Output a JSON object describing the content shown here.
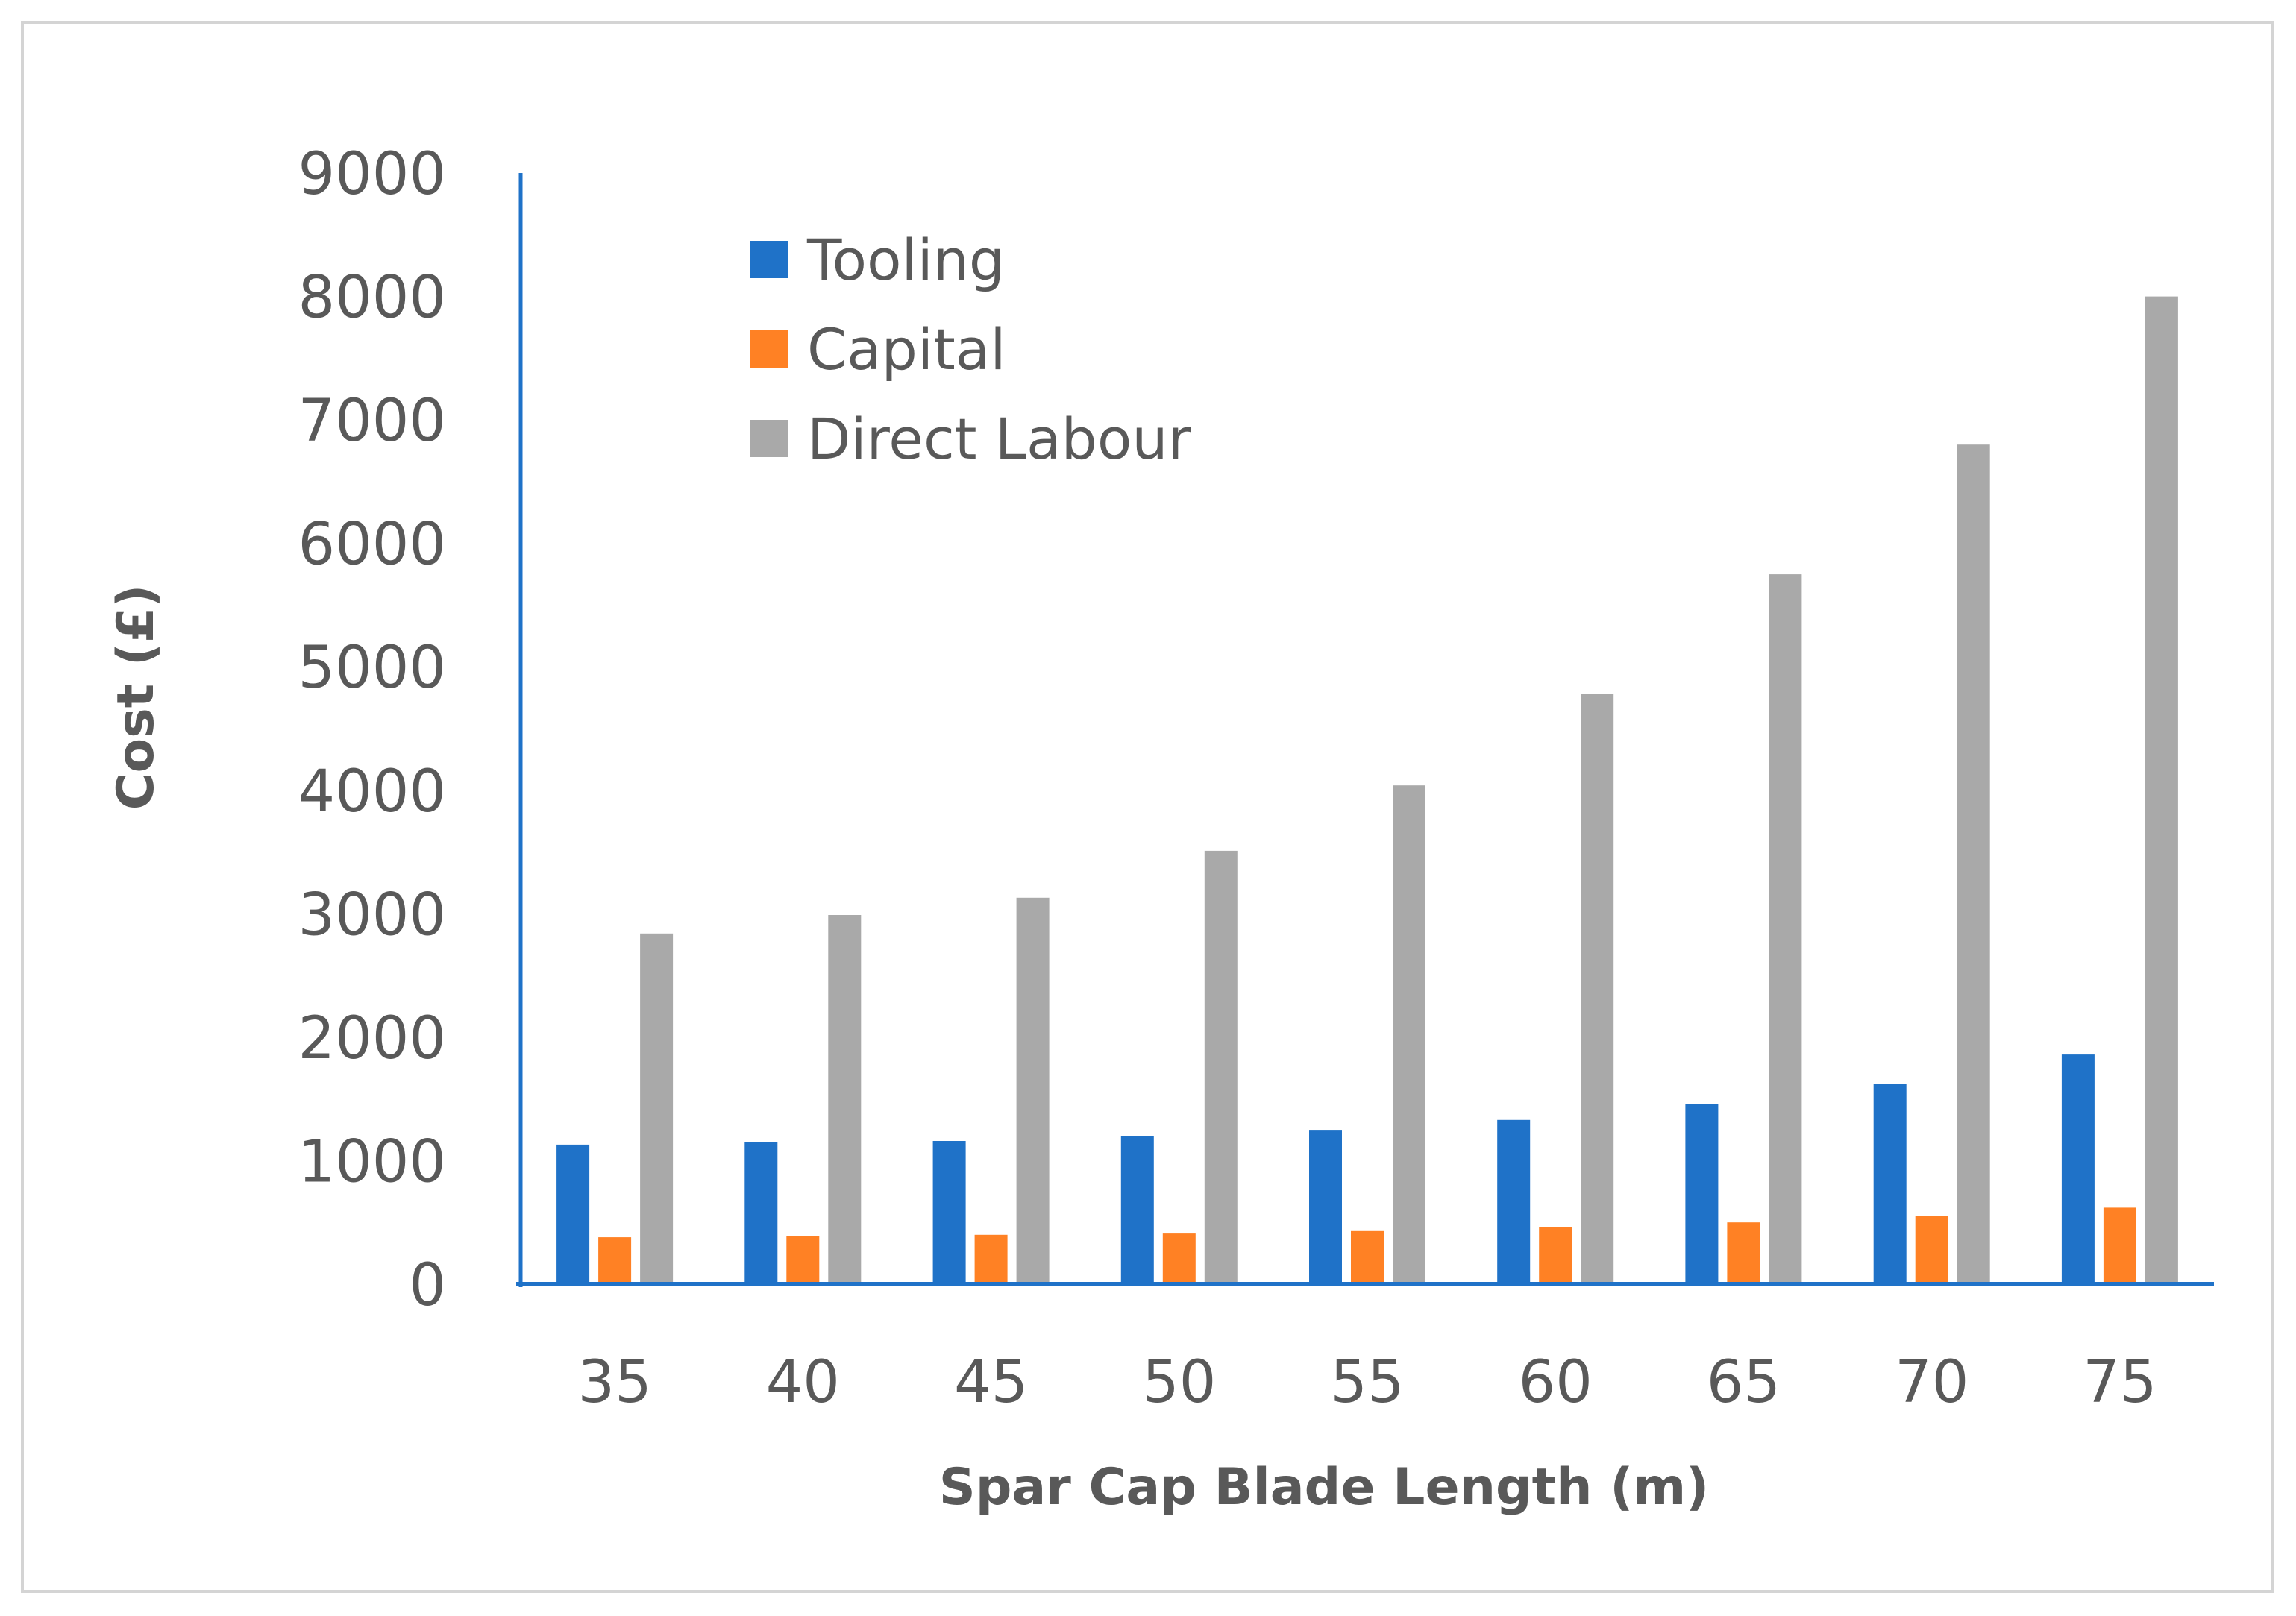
{
  "chart_data": {
    "type": "bar",
    "title": "",
    "xlabel": "Spar Cap Blade Length (m)",
    "ylabel": "Cost (£)",
    "categories": [
      "35",
      "40",
      "45",
      "50",
      "55",
      "60",
      "65",
      "70",
      "75"
    ],
    "ylim": [
      0,
      9000
    ],
    "yticks": [
      "0",
      "1000",
      "2000",
      "3000",
      "4000",
      "5000",
      "6000",
      "7000",
      "8000",
      "9000"
    ],
    "grid": false,
    "legend_position": "top-left",
    "series": [
      {
        "name": "Tooling",
        "color": "#1f72c8",
        "values": [
          1130,
          1150,
          1160,
          1200,
          1250,
          1330,
          1460,
          1620,
          1860
        ]
      },
      {
        "name": "Capital",
        "color": "#ff8124",
        "values": [
          380,
          390,
          400,
          410,
          430,
          460,
          500,
          550,
          620
        ]
      },
      {
        "name": "Direct Labour",
        "color": "#a9a9a9",
        "values": [
          2840,
          2990,
          3130,
          3510,
          4040,
          4780,
          5750,
          6800,
          8000
        ]
      }
    ],
    "axis_color": "#1f72c8"
  }
}
